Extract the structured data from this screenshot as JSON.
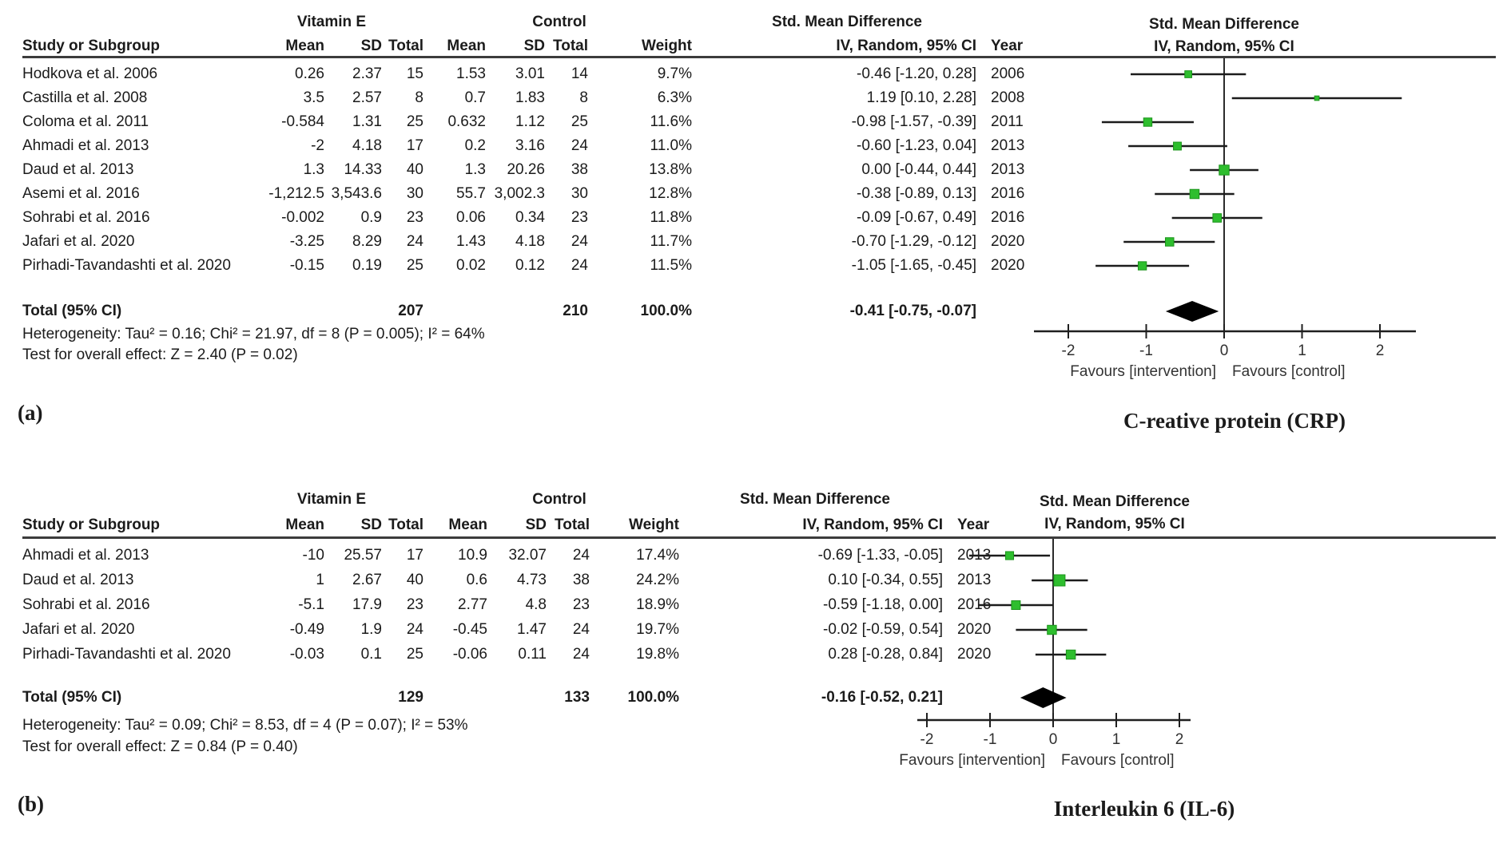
{
  "figure": {
    "panels": [
      {
        "caption_label": "(a)",
        "caption_title": "C-reative protein (CRP)",
        "chart_data": {
          "type": "forest",
          "group1_label": "Vitamin E",
          "group2_label": "Control",
          "effect_label": "Std. Mean Difference",
          "method_label": "IV, Random, 95% CI",
          "columns": [
            "Study or Subgroup",
            "Mean",
            "SD",
            "Total",
            "Mean",
            "SD",
            "Total",
            "Weight",
            "IV, Random, 95% CI",
            "Year"
          ],
          "studies": [
            {
              "study": "Hodkova et al. 2006",
              "mean1": "0.26",
              "sd1": "2.37",
              "n1": "15",
              "mean2": "1.53",
              "sd2": "3.01",
              "n2": "14",
              "weight": "9.7%",
              "ci_text": "-0.46 [-1.20, 0.28]",
              "year": "2006",
              "est": -0.46,
              "lo": -1.2,
              "hi": 0.28,
              "w": 9.7
            },
            {
              "study": "Castilla et al. 2008",
              "mean1": "3.5",
              "sd1": "2.57",
              "n1": "8",
              "mean2": "0.7",
              "sd2": "1.83",
              "n2": "8",
              "weight": "6.3%",
              "ci_text": "1.19 [0.10, 2.28]",
              "year": "2008",
              "est": 1.19,
              "lo": 0.1,
              "hi": 2.28,
              "w": 6.3
            },
            {
              "study": "Coloma et al. 2011",
              "mean1": "-0.584",
              "sd1": "1.31",
              "n1": "25",
              "mean2": "0.632",
              "sd2": "1.12",
              "n2": "25",
              "weight": "11.6%",
              "ci_text": "-0.98 [-1.57, -0.39]",
              "year": "2011",
              "est": -0.98,
              "lo": -1.57,
              "hi": -0.39,
              "w": 11.6
            },
            {
              "study": "Ahmadi et al. 2013",
              "mean1": "-2",
              "sd1": "4.18",
              "n1": "17",
              "mean2": "0.2",
              "sd2": "3.16",
              "n2": "24",
              "weight": "11.0%",
              "ci_text": "-0.60 [-1.23, 0.04]",
              "year": "2013",
              "est": -0.6,
              "lo": -1.23,
              "hi": 0.04,
              "w": 11.0
            },
            {
              "study": "Daud et al. 2013",
              "mean1": "1.3",
              "sd1": "14.33",
              "n1": "40",
              "mean2": "1.3",
              "sd2": "20.26",
              "n2": "38",
              "weight": "13.8%",
              "ci_text": "0.00 [-0.44, 0.44]",
              "year": "2013",
              "est": 0.0,
              "lo": -0.44,
              "hi": 0.44,
              "w": 13.8
            },
            {
              "study": "Asemi et al. 2016",
              "mean1": "-1,212.5",
              "sd1": "3,543.6",
              "n1": "30",
              "mean2": "55.7",
              "sd2": "3,002.3",
              "n2": "30",
              "weight": "12.8%",
              "ci_text": "-0.38 [-0.89, 0.13]",
              "year": "2016",
              "est": -0.38,
              "lo": -0.89,
              "hi": 0.13,
              "w": 12.8
            },
            {
              "study": "Sohrabi et al. 2016",
              "mean1": "-0.002",
              "sd1": "0.9",
              "n1": "23",
              "mean2": "0.06",
              "sd2": "0.34",
              "n2": "23",
              "weight": "11.8%",
              "ci_text": "-0.09 [-0.67, 0.49]",
              "year": "2016",
              "est": -0.09,
              "lo": -0.67,
              "hi": 0.49,
              "w": 11.8
            },
            {
              "study": "Jafari et al. 2020",
              "mean1": "-3.25",
              "sd1": "8.29",
              "n1": "24",
              "mean2": "1.43",
              "sd2": "4.18",
              "n2": "24",
              "weight": "11.7%",
              "ci_text": "-0.70 [-1.29, -0.12]",
              "year": "2020",
              "est": -0.7,
              "lo": -1.29,
              "hi": -0.12,
              "w": 11.7
            },
            {
              "study": "Pirhadi-Tavandashti et al. 2020",
              "mean1": "-0.15",
              "sd1": "0.19",
              "n1": "25",
              "mean2": "0.02",
              "sd2": "0.12",
              "n2": "24",
              "weight": "11.5%",
              "ci_text": "-1.05 [-1.65, -0.45]",
              "year": "2020",
              "est": -1.05,
              "lo": -1.65,
              "hi": -0.45,
              "w": 11.5
            }
          ],
          "total": {
            "label": "Total (95% CI)",
            "n1": "207",
            "n2": "210",
            "weight": "100.0%",
            "ci_text": "-0.41 [-0.75, -0.07]",
            "est": -0.41,
            "lo": -0.75,
            "hi": -0.07
          },
          "heterogeneity": "Heterogeneity: Tau² = 0.16; Chi² = 21.97, df = 8 (P = 0.005); I² = 64%",
          "overall_effect": "Test for overall effect: Z = 2.40 (P = 0.02)",
          "axis": {
            "ticks": [
              -2,
              -1,
              0,
              1,
              2
            ],
            "xlim": [
              -2.45,
              2.47
            ],
            "left_label": "Favours [intervention]",
            "right_label": "Favours [control]"
          },
          "marker_color": "#2ebe2e"
        }
      },
      {
        "caption_label": "(b)",
        "caption_title": "Interleukin 6 (IL-6)",
        "chart_data": {
          "type": "forest",
          "group1_label": "Vitamin E",
          "group2_label": "Control",
          "effect_label": "Std. Mean Difference",
          "method_label": "IV, Random, 95% CI",
          "columns": [
            "Study or Subgroup",
            "Mean",
            "SD",
            "Total",
            "Mean",
            "SD",
            "Total",
            "Weight",
            "IV, Random, 95% CI",
            "Year"
          ],
          "studies": [
            {
              "study": "Ahmadi et al. 2013",
              "mean1": "-10",
              "sd1": "25.57",
              "n1": "17",
              "mean2": "10.9",
              "sd2": "32.07",
              "n2": "24",
              "weight": "17.4%",
              "ci_text": "-0.69 [-1.33, -0.05]",
              "year": "2013",
              "est": -0.69,
              "lo": -1.33,
              "hi": -0.05,
              "w": 17.4
            },
            {
              "study": "Daud et al. 2013",
              "mean1": "1",
              "sd1": "2.67",
              "n1": "40",
              "mean2": "0.6",
              "sd2": "4.73",
              "n2": "38",
              "weight": "24.2%",
              "ci_text": "0.10 [-0.34, 0.55]",
              "year": "2013",
              "est": 0.1,
              "lo": -0.34,
              "hi": 0.55,
              "w": 24.2
            },
            {
              "study": "Sohrabi et al. 2016",
              "mean1": "-5.1",
              "sd1": "17.9",
              "n1": "23",
              "mean2": "2.77",
              "sd2": "4.8",
              "n2": "23",
              "weight": "18.9%",
              "ci_text": "-0.59 [-1.18, 0.00]",
              "year": "2016",
              "est": -0.59,
              "lo": -1.18,
              "hi": 0.0,
              "w": 18.9
            },
            {
              "study": "Jafari et al. 2020",
              "mean1": "-0.49",
              "sd1": "1.9",
              "n1": "24",
              "mean2": "-0.45",
              "sd2": "1.47",
              "n2": "24",
              "weight": "19.7%",
              "ci_text": "-0.02 [-0.59, 0.54]",
              "year": "2020",
              "est": -0.02,
              "lo": -0.59,
              "hi": 0.54,
              "w": 19.7
            },
            {
              "study": "Pirhadi-Tavandashti et al. 2020",
              "mean1": "-0.03",
              "sd1": "0.1",
              "n1": "25",
              "mean2": "-0.06",
              "sd2": "0.11",
              "n2": "24",
              "weight": "19.8%",
              "ci_text": "0.28 [-0.28, 0.84]",
              "year": "2020",
              "est": 0.28,
              "lo": -0.28,
              "hi": 0.84,
              "w": 19.8
            }
          ],
          "total": {
            "label": "Total (95% CI)",
            "n1": "129",
            "n2": "133",
            "weight": "100.0%",
            "ci_text": "-0.16 [-0.52, 0.21]",
            "est": -0.16,
            "lo": -0.52,
            "hi": 0.21
          },
          "heterogeneity": "Heterogeneity: Tau² = 0.09; Chi² = 8.53, df = 4 (P = 0.07); I² = 53%",
          "overall_effect": "Test for overall effect: Z = 0.84 (P = 0.40)",
          "axis": {
            "ticks": [
              -2,
              -1,
              0,
              1,
              2
            ],
            "xlim": [
              -2.15,
              2.18
            ],
            "left_label": "Favours [intervention]",
            "right_label": "Favours [control]"
          },
          "marker_color": "#2ebe2e"
        }
      }
    ]
  }
}
